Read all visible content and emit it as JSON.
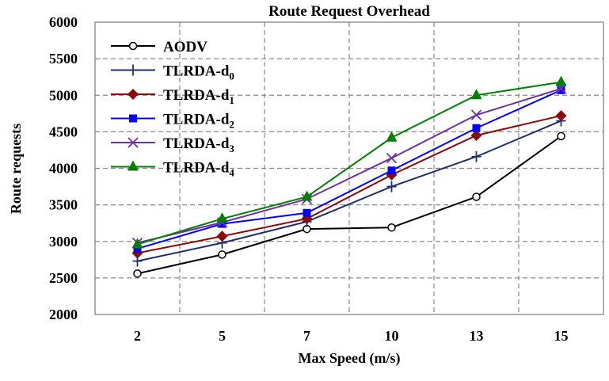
{
  "chart_data": {
    "type": "line",
    "title": "Route Request Overhead",
    "xlabel": "Max Speed (m/s)",
    "ylabel": "Route requests",
    "categories": [
      "2",
      "5",
      "7",
      "10",
      "13",
      "15"
    ],
    "ylim": [
      2000,
      6000
    ],
    "yticks": [
      2000,
      2500,
      3000,
      3500,
      4000,
      4500,
      5000,
      5500,
      6000
    ],
    "grid": true,
    "legend_position": "top-left",
    "series": [
      {
        "name": "AODV",
        "base": "TLRDA-d",
        "sub": "",
        "label": "AODV",
        "color": "#000000",
        "marker": "circle-open",
        "values": [
          2560,
          2820,
          3170,
          3190,
          3610,
          4440
        ]
      },
      {
        "name": "TLRDA-d0",
        "label": "TLRDA-d",
        "sub": "0",
        "color": "#1f2f6e",
        "marker": "plus",
        "values": [
          2730,
          2980,
          3270,
          3750,
          4160,
          4650
        ]
      },
      {
        "name": "TLRDA-d1",
        "label": "TLRDA-d",
        "sub": "1",
        "color": "#8b0a0a",
        "marker": "diamond",
        "values": [
          2840,
          3070,
          3310,
          3910,
          4450,
          4720
        ]
      },
      {
        "name": "TLRDA-d2",
        "label": "TLRDA-d",
        "sub": "2",
        "color": "#0000ff",
        "marker": "square",
        "values": [
          2900,
          3240,
          3390,
          3970,
          4550,
          5070
        ]
      },
      {
        "name": "TLRDA-d3",
        "label": "TLRDA-d",
        "sub": "3",
        "color": "#7030a0",
        "marker": "x",
        "values": [
          2980,
          3260,
          3580,
          4140,
          4730,
          5090
        ]
      },
      {
        "name": "TLRDA-d4",
        "label": "TLRDA-d",
        "sub": "4",
        "color": "#008000",
        "marker": "triangle",
        "values": [
          2960,
          3310,
          3610,
          4420,
          5000,
          5180
        ]
      }
    ]
  }
}
